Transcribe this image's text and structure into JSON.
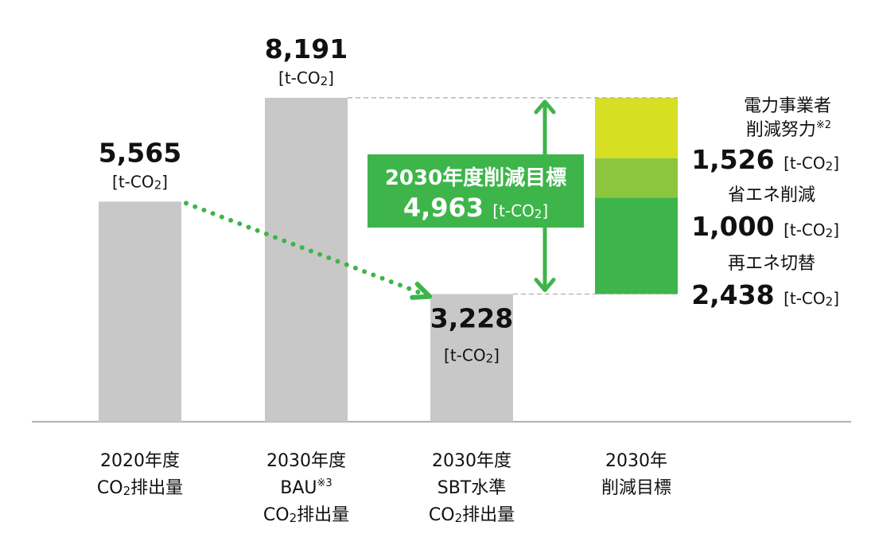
{
  "chart_data": {
    "type": "bar",
    "title": "",
    "xlabel": "",
    "ylabel": "",
    "ylim": [
      0,
      10000
    ],
    "grid": false,
    "unit": "[t-CO2]",
    "unit_prefix": "[t-CO",
    "unit_sub": "2",
    "unit_suffix": "]",
    "categories": [
      {
        "id": "c2020",
        "lines": [
          "2020年度",
          "CO2排出量"
        ],
        "value": 5565,
        "value_label": "5,565"
      },
      {
        "id": "cbau",
        "lines": [
          "2030年度",
          "BAU※3",
          "CO2排出量"
        ],
        "value": 8191,
        "value_label": "8,191"
      },
      {
        "id": "csbt",
        "lines": [
          "2030年度",
          "SBT水準",
          "CO2排出量"
        ],
        "value": 3228,
        "value_label": "3,228"
      },
      {
        "id": "ctarget",
        "lines": [
          "2030年",
          "削減目標"
        ]
      }
    ],
    "cat_parts": {
      "co2_c": "CO",
      "co2_sub": "2",
      "co2_rest": "排出量",
      "bau_main": "BAU",
      "bau_note": "※3"
    },
    "target": {
      "label": "2030年度削減目標",
      "value": 4963,
      "value_label": "4,963"
    },
    "stack": [
      {
        "name": "再エネ切替",
        "value": 2438,
        "value_label": "2,438",
        "color": "#3db54a"
      },
      {
        "name": "省エネ削減",
        "value": 1000,
        "value_label": "1,000",
        "color": "#8cc63f"
      },
      {
        "name": "電力事業者削減努力※2",
        "name_lines": [
          "電力事業者",
          "削減努力"
        ],
        "note": "※2",
        "value": 1526,
        "value_label": "1,526",
        "color": "#d7df23"
      }
    ],
    "annotations": [
      "dotted arrow from 2020年度 to 2030年度 SBT水準",
      "double arrow spanning reduction target"
    ]
  },
  "colors": {
    "bar_gray": "#c8c8c8",
    "accent_green": "#3db54a",
    "baseline": "#999999",
    "dash": "#aaaaaa"
  }
}
